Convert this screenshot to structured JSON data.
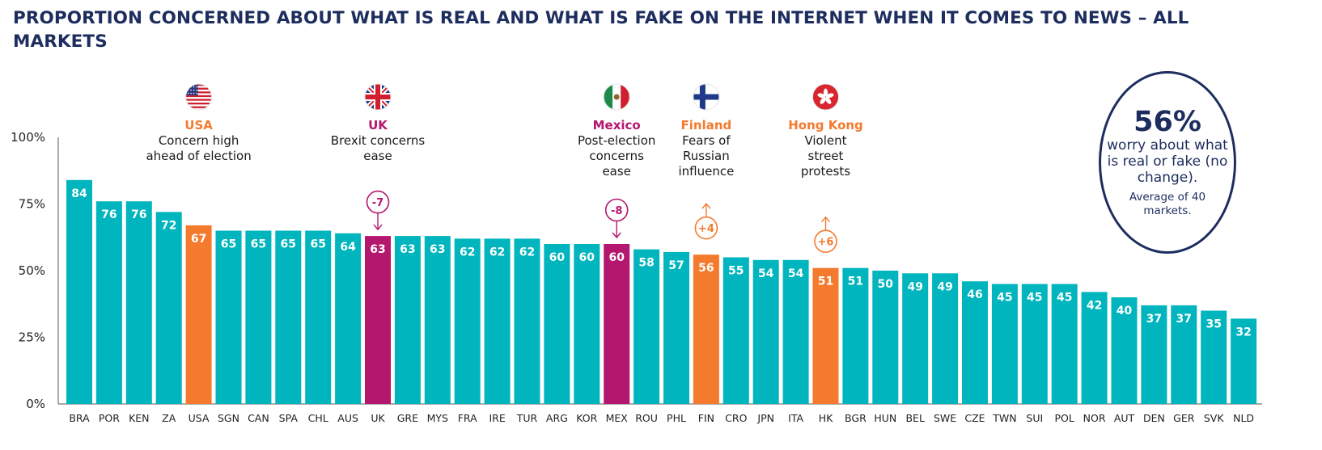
{
  "title": "PROPORTION CONCERNED ABOUT WHAT IS REAL AND WHAT IS FAKE ON THE INTERNET WHEN IT COMES TO NEWS – ALL MARKETS",
  "colors": {
    "teal": "#00b5bd",
    "orange": "#f47a2e",
    "magenta": "#b3176e",
    "navy": "#1d2d5e"
  },
  "badge": {
    "percent": "56%",
    "text": "worry about what is real or fake (no change).",
    "subtext": "Average of 40 markets."
  },
  "annotations": [
    {
      "market": "USA",
      "name": "USA",
      "description": "Concern high\nahead of election",
      "color": "#f47a2e",
      "icon": "usa-flag-icon"
    },
    {
      "market": "UK",
      "name": "UK",
      "description": "Brexit concerns\nease",
      "color": "#b3176e",
      "icon": "uk-flag-icon"
    },
    {
      "market": "MEX",
      "name": "Mexico",
      "description": "Post-election\nconcerns\nease",
      "color": "#b3176e",
      "icon": "mexico-flag-icon"
    },
    {
      "market": "FIN",
      "name": "Finland",
      "description": "Fears of\nRussian\ninfluence",
      "color": "#f47a2e",
      "icon": "finland-flag-icon"
    },
    {
      "market": "HK",
      "name": "Hong Kong",
      "description": "Violent\nstreet\nprotests",
      "color": "#f47a2e",
      "icon": "hong-kong-flag-icon"
    }
  ],
  "changes": [
    {
      "market": "UK",
      "label": "-7",
      "direction": "down",
      "color": "#b3176e"
    },
    {
      "market": "MEX",
      "label": "-8",
      "direction": "down",
      "color": "#b3176e"
    },
    {
      "market": "FIN",
      "label": "+4",
      "direction": "up",
      "color": "#f47a2e"
    },
    {
      "market": "HK",
      "label": "+6",
      "direction": "up",
      "color": "#f47a2e"
    }
  ],
  "chart_data": {
    "type": "bar",
    "title": "PROPORTION CONCERNED ABOUT WHAT IS REAL AND WHAT IS FAKE ON THE INTERNET WHEN IT COMES TO NEWS – ALL MARKETS",
    "xlabel": "",
    "ylabel": "",
    "ylim": [
      0,
      100
    ],
    "yticks": [
      0,
      25,
      50,
      75,
      100
    ],
    "ytick_labels": [
      "0%",
      "25%",
      "50%",
      "75%",
      "100%"
    ],
    "grid": false,
    "categories": [
      "BRA",
      "POR",
      "KEN",
      "ZA",
      "USA",
      "SGN",
      "CAN",
      "SPA",
      "CHL",
      "AUS",
      "UK",
      "GRE",
      "MYS",
      "FRA",
      "IRE",
      "TUR",
      "ARG",
      "KOR",
      "MEX",
      "ROU",
      "PHL",
      "FIN",
      "CRO",
      "JPN",
      "ITA",
      "HK",
      "BGR",
      "HUN",
      "BEL",
      "SWE",
      "CZE",
      "TWN",
      "SUI",
      "POL",
      "NOR",
      "AUT",
      "DEN",
      "GER",
      "SVK",
      "NLD"
    ],
    "values": [
      84,
      76,
      76,
      72,
      67,
      65,
      65,
      65,
      65,
      64,
      63,
      63,
      63,
      62,
      62,
      62,
      60,
      60,
      60,
      58,
      57,
      56,
      55,
      54,
      54,
      51,
      51,
      50,
      49,
      49,
      46,
      45,
      45,
      45,
      42,
      40,
      37,
      37,
      35,
      32
    ],
    "bar_colors": {
      "default": "#00b5bd",
      "USA": "#f47a2e",
      "FIN": "#f47a2e",
      "HK": "#f47a2e",
      "UK": "#b3176e",
      "MEX": "#b3176e"
    }
  }
}
